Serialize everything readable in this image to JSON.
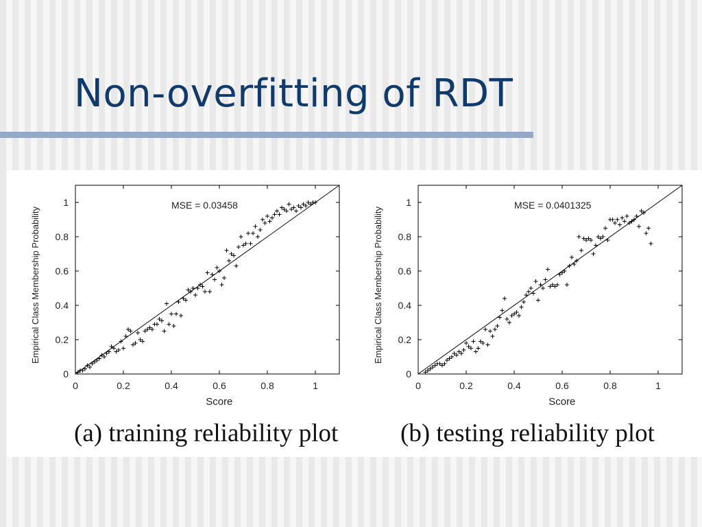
{
  "slide": {
    "title": "Non-overfitting of RDT",
    "captions": [
      "(a) training reliability plot",
      "(b) testing reliability plot"
    ]
  },
  "chart_data": [
    {
      "type": "scatter",
      "xlabel": "Score",
      "ylabel": "Empirical Class Membership Probability",
      "annotation": "MSE = 0.03458",
      "xlim": [
        0,
        1.1
      ],
      "ylim": [
        0,
        1.1
      ],
      "xticks": [
        0,
        0.2,
        0.4,
        0.6,
        0.8,
        1
      ],
      "yticks": [
        0,
        0.2,
        0.4,
        0.6,
        0.8,
        1
      ],
      "reference_line": [
        [
          0,
          0
        ],
        [
          1.1,
          1.1
        ]
      ],
      "points": [
        [
          0.01,
          0.01
        ],
        [
          0.02,
          0.02
        ],
        [
          0.03,
          0.02
        ],
        [
          0.04,
          0.03
        ],
        [
          0.05,
          0.05
        ],
        [
          0.06,
          0.04
        ],
        [
          0.07,
          0.06
        ],
        [
          0.08,
          0.07
        ],
        [
          0.09,
          0.08
        ],
        [
          0.1,
          0.09
        ],
        [
          0.11,
          0.11
        ],
        [
          0.12,
          0.1
        ],
        [
          0.13,
          0.12
        ],
        [
          0.14,
          0.13
        ],
        [
          0.15,
          0.16
        ],
        [
          0.16,
          0.15
        ],
        [
          0.17,
          0.13
        ],
        [
          0.18,
          0.14
        ],
        [
          0.19,
          0.19
        ],
        [
          0.2,
          0.15
        ],
        [
          0.21,
          0.22
        ],
        [
          0.22,
          0.26
        ],
        [
          0.23,
          0.25
        ],
        [
          0.24,
          0.17
        ],
        [
          0.25,
          0.18
        ],
        [
          0.26,
          0.24
        ],
        [
          0.27,
          0.2
        ],
        [
          0.28,
          0.19
        ],
        [
          0.29,
          0.25
        ],
        [
          0.3,
          0.26
        ],
        [
          0.31,
          0.27
        ],
        [
          0.32,
          0.26
        ],
        [
          0.33,
          0.29
        ],
        [
          0.34,
          0.29
        ],
        [
          0.35,
          0.32
        ],
        [
          0.36,
          0.31
        ],
        [
          0.37,
          0.25
        ],
        [
          0.38,
          0.41
        ],
        [
          0.39,
          0.29
        ],
        [
          0.4,
          0.35
        ],
        [
          0.41,
          0.28
        ],
        [
          0.42,
          0.35
        ],
        [
          0.43,
          0.42
        ],
        [
          0.44,
          0.34
        ],
        [
          0.45,
          0.44
        ],
        [
          0.46,
          0.43
        ],
        [
          0.47,
          0.49
        ],
        [
          0.48,
          0.48
        ],
        [
          0.49,
          0.5
        ],
        [
          0.5,
          0.46
        ],
        [
          0.51,
          0.5
        ],
        [
          0.52,
          0.52
        ],
        [
          0.53,
          0.51
        ],
        [
          0.54,
          0.48
        ],
        [
          0.55,
          0.59
        ],
        [
          0.56,
          0.48
        ],
        [
          0.57,
          0.58
        ],
        [
          0.58,
          0.55
        ],
        [
          0.59,
          0.62
        ],
        [
          0.6,
          0.6
        ],
        [
          0.61,
          0.52
        ],
        [
          0.62,
          0.56
        ],
        [
          0.63,
          0.72
        ],
        [
          0.64,
          0.66
        ],
        [
          0.65,
          0.7
        ],
        [
          0.66,
          0.69
        ],
        [
          0.67,
          0.63
        ],
        [
          0.68,
          0.74
        ],
        [
          0.69,
          0.8
        ],
        [
          0.7,
          0.75
        ],
        [
          0.71,
          0.76
        ],
        [
          0.72,
          0.82
        ],
        [
          0.73,
          0.76
        ],
        [
          0.74,
          0.82
        ],
        [
          0.75,
          0.86
        ],
        [
          0.76,
          0.8
        ],
        [
          0.77,
          0.84
        ],
        [
          0.78,
          0.9
        ],
        [
          0.79,
          0.88
        ],
        [
          0.8,
          0.92
        ],
        [
          0.81,
          0.89
        ],
        [
          0.82,
          0.91
        ],
        [
          0.83,
          0.93
        ],
        [
          0.84,
          0.95
        ],
        [
          0.85,
          0.93
        ],
        [
          0.86,
          0.97
        ],
        [
          0.87,
          0.96
        ],
        [
          0.88,
          0.95
        ],
        [
          0.89,
          0.99
        ],
        [
          0.9,
          0.96
        ],
        [
          0.91,
          0.97
        ],
        [
          0.92,
          0.95
        ],
        [
          0.93,
          0.98
        ],
        [
          0.94,
          0.97
        ],
        [
          0.95,
          0.99
        ],
        [
          0.96,
          0.98
        ],
        [
          0.97,
          1.0
        ],
        [
          0.98,
          0.99
        ],
        [
          0.99,
          1.0
        ],
        [
          1.0,
          1.0
        ]
      ]
    },
    {
      "type": "scatter",
      "xlabel": "Score",
      "ylabel": "Empirical Class Membership Probability",
      "annotation": "MSE = 0.0401325",
      "xlim": [
        0,
        1.1
      ],
      "ylim": [
        0,
        1.1
      ],
      "xticks": [
        0,
        0.2,
        0.4,
        0.6,
        0.8,
        1
      ],
      "yticks": [
        0,
        0.2,
        0.4,
        0.6,
        0.8,
        1
      ],
      "reference_line": [
        [
          0,
          0
        ],
        [
          1.1,
          1.1
        ]
      ],
      "points": [
        [
          0.03,
          0.01
        ],
        [
          0.04,
          0.02
        ],
        [
          0.05,
          0.03
        ],
        [
          0.06,
          0.04
        ],
        [
          0.07,
          0.05
        ],
        [
          0.08,
          0.06
        ],
        [
          0.09,
          0.06
        ],
        [
          0.1,
          0.05
        ],
        [
          0.11,
          0.06
        ],
        [
          0.12,
          0.08
        ],
        [
          0.13,
          0.09
        ],
        [
          0.14,
          0.1
        ],
        [
          0.15,
          0.12
        ],
        [
          0.16,
          0.11
        ],
        [
          0.17,
          0.13
        ],
        [
          0.18,
          0.12
        ],
        [
          0.19,
          0.14
        ],
        [
          0.2,
          0.18
        ],
        [
          0.21,
          0.16
        ],
        [
          0.22,
          0.15
        ],
        [
          0.23,
          0.19
        ],
        [
          0.24,
          0.13
        ],
        [
          0.25,
          0.15
        ],
        [
          0.26,
          0.19
        ],
        [
          0.27,
          0.18
        ],
        [
          0.28,
          0.26
        ],
        [
          0.29,
          0.17
        ],
        [
          0.3,
          0.25
        ],
        [
          0.31,
          0.22
        ],
        [
          0.32,
          0.26
        ],
        [
          0.33,
          0.28
        ],
        [
          0.34,
          0.33
        ],
        [
          0.35,
          0.37
        ],
        [
          0.36,
          0.44
        ],
        [
          0.37,
          0.32
        ],
        [
          0.38,
          0.3
        ],
        [
          0.39,
          0.34
        ],
        [
          0.4,
          0.35
        ],
        [
          0.41,
          0.36
        ],
        [
          0.42,
          0.34
        ],
        [
          0.43,
          0.39
        ],
        [
          0.44,
          0.42
        ],
        [
          0.45,
          0.46
        ],
        [
          0.46,
          0.48
        ],
        [
          0.47,
          0.5
        ],
        [
          0.48,
          0.47
        ],
        [
          0.49,
          0.54
        ],
        [
          0.5,
          0.43
        ],
        [
          0.51,
          0.52
        ],
        [
          0.52,
          0.5
        ],
        [
          0.53,
          0.55
        ],
        [
          0.54,
          0.61
        ],
        [
          0.55,
          0.51
        ],
        [
          0.56,
          0.52
        ],
        [
          0.57,
          0.51
        ],
        [
          0.58,
          0.52
        ],
        [
          0.59,
          0.58
        ],
        [
          0.6,
          0.59
        ],
        [
          0.61,
          0.6
        ],
        [
          0.62,
          0.52
        ],
        [
          0.63,
          0.63
        ],
        [
          0.64,
          0.68
        ],
        [
          0.65,
          0.64
        ],
        [
          0.66,
          0.66
        ],
        [
          0.67,
          0.8
        ],
        [
          0.68,
          0.72
        ],
        [
          0.69,
          0.79
        ],
        [
          0.7,
          0.78
        ],
        [
          0.71,
          0.79
        ],
        [
          0.72,
          0.78
        ],
        [
          0.73,
          0.7
        ],
        [
          0.74,
          0.75
        ],
        [
          0.75,
          0.8
        ],
        [
          0.76,
          0.79
        ],
        [
          0.77,
          0.8
        ],
        [
          0.78,
          0.85
        ],
        [
          0.79,
          0.78
        ],
        [
          0.8,
          0.9
        ],
        [
          0.81,
          0.9
        ],
        [
          0.82,
          0.88
        ],
        [
          0.83,
          0.9
        ],
        [
          0.84,
          0.87
        ],
        [
          0.85,
          0.91
        ],
        [
          0.86,
          0.89
        ],
        [
          0.87,
          0.92
        ],
        [
          0.88,
          0.88
        ],
        [
          0.89,
          0.89
        ],
        [
          0.9,
          0.9
        ],
        [
          0.91,
          0.92
        ],
        [
          0.92,
          0.86
        ],
        [
          0.93,
          0.95
        ],
        [
          0.94,
          0.94
        ],
        [
          0.95,
          0.82
        ],
        [
          0.96,
          0.85
        ],
        [
          0.97,
          0.76
        ]
      ]
    }
  ]
}
